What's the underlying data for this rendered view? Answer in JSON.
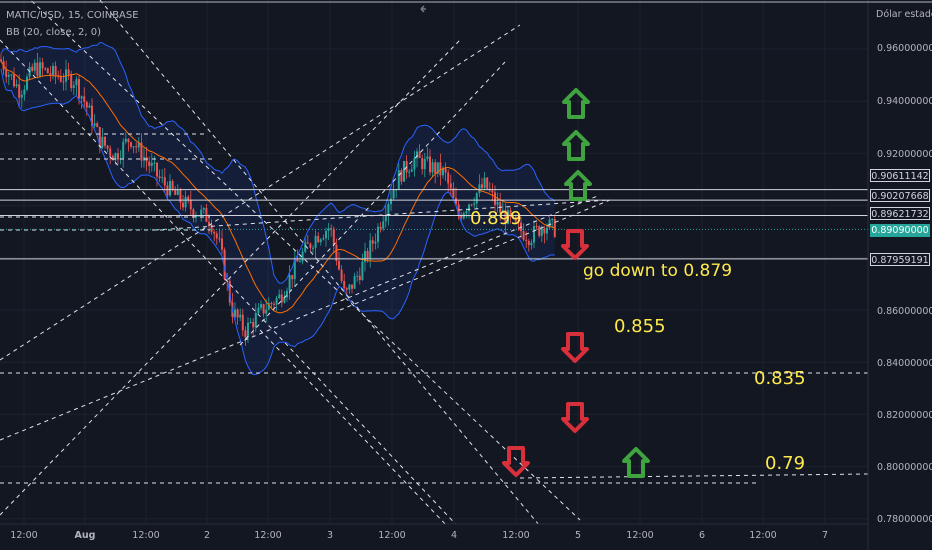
{
  "header": {
    "symbol": "MATIC/USD, 15, COINBASE",
    "indicator": "BB (20, close, 2, 0)",
    "axis_currency": "Dólar estadou"
  },
  "chart_data": {
    "type": "line",
    "y_ticks": [
      "0.96000000",
      "0.94000000",
      "0.92000000",
      "0.86000000",
      "0.84000000",
      "0.82000000",
      "0.80000000",
      "0.78000000"
    ],
    "x_ticks": [
      "12:00",
      "Aug",
      "12:00",
      "2",
      "12:00",
      "3",
      "12:00",
      "4",
      "12:00",
      "5",
      "12:00",
      "6",
      "12:00",
      "7"
    ],
    "ylim": [
      0.777,
      0.97
    ],
    "price_tags": [
      {
        "label": "0.90611142",
        "value": 0.90611142,
        "style": "plain"
      },
      {
        "label": "0.90207668",
        "value": 0.90207668,
        "style": "plain"
      },
      {
        "label": "0.89621732",
        "value": 0.89621732,
        "style": "plain"
      },
      {
        "label": "0.89090000",
        "value": 0.8909,
        "style": "current"
      },
      {
        "label": "0.87959191",
        "value": 0.87959191,
        "style": "plain"
      }
    ],
    "horizontal_levels": [
      0.90611142,
      0.90207668,
      0.89621732,
      0.87959191
    ],
    "annotations": [
      {
        "text": "0.899",
        "kind": "label"
      },
      {
        "text": "go down to 0.879",
        "kind": "label"
      },
      {
        "text": "0.855",
        "kind": "label"
      },
      {
        "text": "0.835",
        "kind": "label"
      },
      {
        "text": "0.79",
        "kind": "label"
      }
    ],
    "arrows": [
      {
        "direction": "up",
        "color": "#3fa33f"
      },
      {
        "direction": "up",
        "color": "#3fa33f"
      },
      {
        "direction": "up",
        "color": "#3fa33f"
      },
      {
        "direction": "down",
        "color": "#d8303b"
      },
      {
        "direction": "down",
        "color": "#d8303b"
      },
      {
        "direction": "down",
        "color": "#d8303b"
      },
      {
        "direction": "down",
        "color": "#d8303b"
      },
      {
        "direction": "up",
        "color": "#3fa33f"
      }
    ],
    "colors": {
      "background": "#131722",
      "band": "#2962ff",
      "basis": "#ff6d00",
      "up": "#26a69a",
      "down": "#ef5350",
      "annotation": "#ffe94d",
      "current_tag": "#26a69a"
    }
  }
}
